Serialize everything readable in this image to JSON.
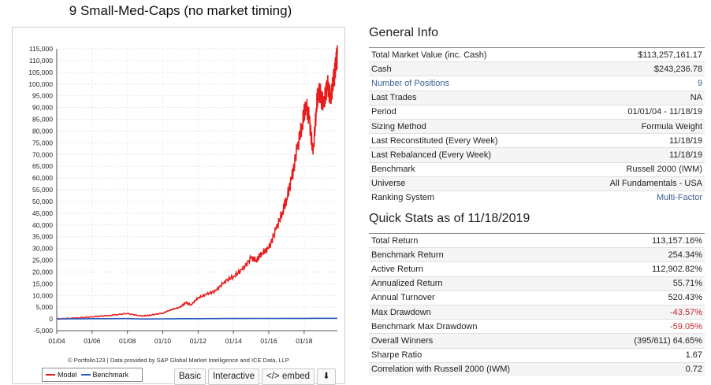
{
  "title": "9 Small-Med-Caps (no market timing)",
  "colors": {
    "model": "#e81c1c",
    "benchmark": "#2b5fbf",
    "link": "#3a5f96",
    "negative": "#c0252a"
  },
  "chart_data": {
    "type": "line",
    "y_ticks": [
      "115,000",
      "110,000",
      "105,000",
      "100,000",
      "95,000",
      "90,000",
      "85,000",
      "80,000",
      "75,000",
      "70,000",
      "65,000",
      "60,000",
      "55,000",
      "50,000",
      "45,000",
      "40,000",
      "35,000",
      "30,000",
      "25,000",
      "20,000",
      "15,000",
      "10,000",
      "5,000",
      "0",
      "-5,000"
    ],
    "x_ticks": [
      "01/04",
      "01/06",
      "01/08",
      "01/10",
      "01/12",
      "01/14",
      "01/16",
      "01/18"
    ],
    "ylim": [
      -5000,
      115000
    ],
    "xlim": [
      2004.0,
      2019.88
    ],
    "grid": true,
    "legend_position": "bottom-left",
    "series": [
      {
        "name": "Model",
        "color": "#e81c1c",
        "x": [
          2004.0,
          2005.0,
          2006.0,
          2007.0,
          2008.0,
          2008.8,
          2009.3,
          2010.0,
          2010.5,
          2011.0,
          2011.3,
          2011.6,
          2012.0,
          2012.5,
          2013.0,
          2013.5,
          2014.0,
          2014.5,
          2015.0,
          2015.3,
          2015.6,
          2016.0,
          2016.4,
          2016.8,
          2017.0,
          2017.3,
          2017.6,
          2017.9,
          2018.1,
          2018.3,
          2018.5,
          2018.7,
          2018.8,
          2018.95,
          2019.1,
          2019.3,
          2019.5,
          2019.7,
          2019.8,
          2019.88
        ],
        "y": [
          0,
          300,
          900,
          1500,
          2300,
          1200,
          1600,
          2500,
          4000,
          5000,
          7000,
          6000,
          9000,
          10500,
          12000,
          16000,
          18000,
          21000,
          26000,
          25000,
          28000,
          30000,
          38000,
          46000,
          51000,
          60000,
          72000,
          83000,
          92000,
          85000,
          70000,
          90000,
          98000,
          95000,
          90000,
          100000,
          95000,
          103000,
          108000,
          113000
        ]
      },
      {
        "name": "Benchmark",
        "color": "#2b5fbf",
        "x": [
          2004.0,
          2006.0,
          2008.0,
          2009.0,
          2011.0,
          2013.0,
          2015.0,
          2017.0,
          2018.5,
          2019.88
        ],
        "y": [
          0,
          100,
          120,
          -40,
          80,
          140,
          180,
          220,
          250,
          254
        ]
      }
    ]
  },
  "footer": {
    "credit": "© Portfolio123 | Data provided by S&P Global Market Intelligence and ICE Data, LLP",
    "legend_model": "Model",
    "legend_benchmark": "Benchmark",
    "btn_basic": "Basic",
    "btn_interactive": "Interactive",
    "btn_embed": "</> embed",
    "download_icon": "download-icon",
    "download_glyph": "⬇"
  },
  "general_info": {
    "heading": "General Info",
    "rows": [
      {
        "label": "Total Market Value (inc. Cash)",
        "value": "$113,257,161.17"
      },
      {
        "label": "Cash",
        "value": "$243,236.78"
      },
      {
        "label": "Number of Positions",
        "value": "9"
      },
      {
        "label": "Last Trades",
        "value": "NA"
      },
      {
        "label": "Period",
        "value": "01/01/04 - 11/18/19"
      },
      {
        "label": "Sizing Method",
        "value": "Formula Weight"
      },
      {
        "label": "Last Reconstituted (Every Week)",
        "value": "11/18/19"
      },
      {
        "label": "Last Rebalanced (Every Week)",
        "value": "11/18/19"
      },
      {
        "label": "Benchmark",
        "value": "Russell 2000 (IWM)"
      },
      {
        "label": "Universe",
        "value": "All Fundamentals - USA"
      },
      {
        "label": "Ranking System",
        "value": "Multi-Factor"
      }
    ]
  },
  "quick_stats": {
    "heading": "Quick Stats as of 11/18/2019",
    "rows": [
      {
        "label": "Total Return",
        "value": "113,157.16%"
      },
      {
        "label": "Benchmark Return",
        "value": "254.34%"
      },
      {
        "label": "Active Return",
        "value": "112,902.82%"
      },
      {
        "label": "Annualized Return",
        "value": "55.71%"
      },
      {
        "label": "Annual Turnover",
        "value": "520.43%"
      },
      {
        "label": "Max Drawdown",
        "value": "-43.57%"
      },
      {
        "label": "Benchmark Max Drawdown",
        "value": "-59.05%"
      },
      {
        "label": "Overall Winners",
        "value": "(395/611) 64.65%"
      },
      {
        "label": "Sharpe Ratio",
        "value": "1.67"
      },
      {
        "label": "Correlation with Russell 2000 (IWM)",
        "value": "0.72"
      }
    ]
  }
}
